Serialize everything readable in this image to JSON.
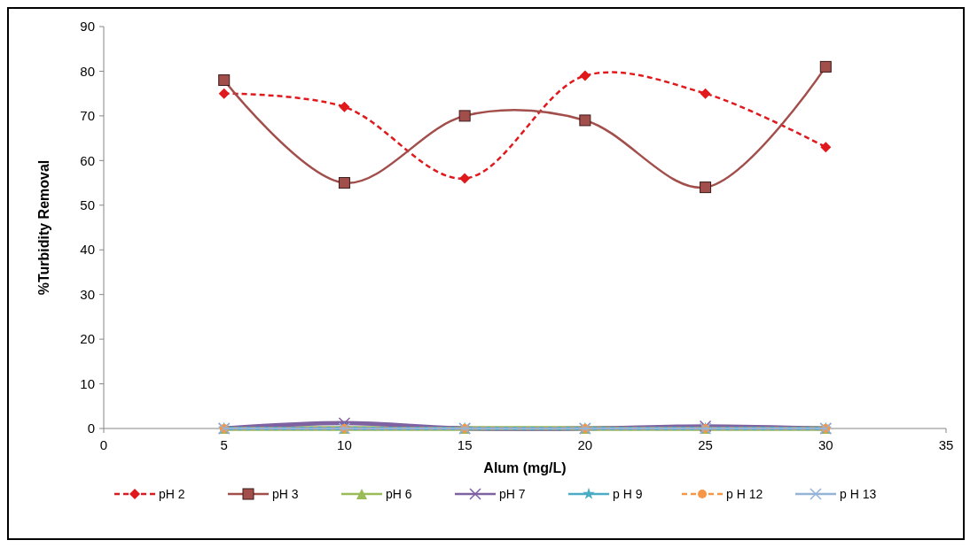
{
  "chart_data": {
    "type": "line",
    "xlabel": "Alum (mg/L)",
    "ylabel": "%Turbidity Removal",
    "x": [
      5,
      10,
      15,
      20,
      25,
      30
    ],
    "xlim": [
      0,
      35
    ],
    "xticks": [
      0,
      5,
      10,
      15,
      20,
      25,
      30,
      35
    ],
    "ylim": [
      0,
      90
    ],
    "yticks": [
      0,
      10,
      20,
      30,
      40,
      50,
      60,
      70,
      80,
      90
    ],
    "grid": false,
    "legend": "bottom",
    "series": [
      {
        "name": "pH 2",
        "color": "#e0191d",
        "values": [
          75,
          72,
          56,
          79,
          75,
          63
        ],
        "marker": "diamond",
        "line_style": "dashed"
      },
      {
        "name": "pH 3",
        "color": "#a24e4b",
        "values": [
          78,
          55,
          70,
          69,
          54,
          81
        ],
        "marker": "square",
        "line_style": "solid"
      },
      {
        "name": "pH 6",
        "color": "#9bbb59",
        "values": [
          0,
          0,
          0,
          0,
          0,
          0
        ],
        "marker": "triangle",
        "line_style": "solid"
      },
      {
        "name": "pH 7",
        "color": "#7e62a1",
        "values": [
          0,
          1.2,
          0,
          0,
          0.5,
          0
        ],
        "marker": "cross",
        "line_style": "solid"
      },
      {
        "name": "p H 9",
        "color": "#4bacc6",
        "values": [
          0,
          0,
          0,
          0,
          0,
          0
        ],
        "marker": "star",
        "line_style": "solid"
      },
      {
        "name": "p H 12",
        "color": "#f79646",
        "values": [
          0,
          0,
          0,
          0,
          0,
          0
        ],
        "marker": "circle",
        "line_style": "dashed"
      },
      {
        "name": "p H 13",
        "color": "#95b3d7",
        "values": [
          0,
          0,
          0,
          0,
          0,
          0
        ],
        "marker": "cross",
        "line_style": "solid"
      }
    ]
  }
}
